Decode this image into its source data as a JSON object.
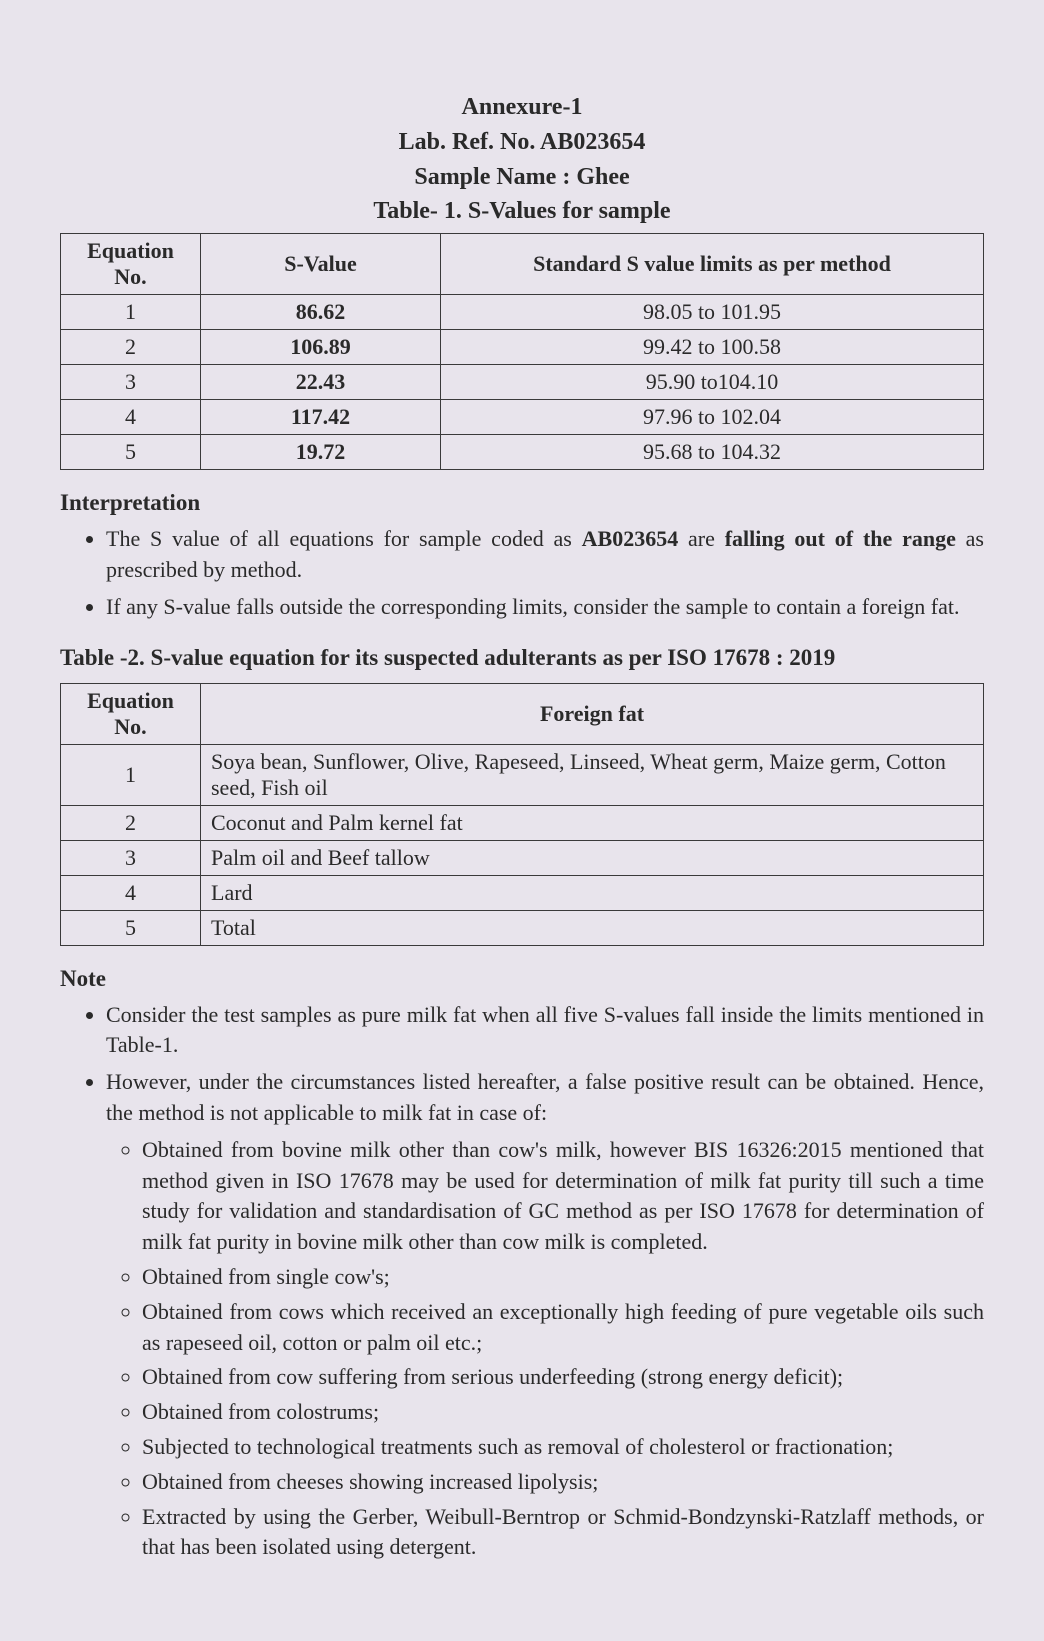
{
  "header": {
    "annexure": "Annexure-1",
    "labref": "Lab. Ref. No. AB023654",
    "sample": "Sample Name : Ghee",
    "table1_title": "Table- 1. S-Values for sample"
  },
  "table1": {
    "headers": {
      "eq": "Equation No.",
      "sval": "S-Value",
      "limits": "Standard S value limits as per method"
    },
    "rows": [
      {
        "eq": "1",
        "sval": "86.62",
        "limits": "98.05 to 101.95"
      },
      {
        "eq": "2",
        "sval": "106.89",
        "limits": "99.42 to 100.58"
      },
      {
        "eq": "3",
        "sval": "22.43",
        "limits": "95.90 to104.10"
      },
      {
        "eq": "4",
        "sval": "117.42",
        "limits": "97.96 to 102.04"
      },
      {
        "eq": "5",
        "sval": "19.72",
        "limits": "95.68 to 104.32"
      }
    ]
  },
  "interpretation": {
    "heading": "Interpretation",
    "b1_a": "The S value of all equations for sample coded as ",
    "b1_code": "AB023654",
    "b1_b": " are ",
    "b1_bold": "falling out of the range",
    "b1_c": " as prescribed by method.",
    "b2": "If any S-value falls outside the corresponding limits, consider the sample to contain a foreign fat."
  },
  "table2_title": "Table -2. S-value equation for its suspected adulterants as per ISO 17678 : 2019",
  "table2": {
    "headers": {
      "eq": "Equation No.",
      "ff": "Foreign fat"
    },
    "rows": [
      {
        "eq": "1",
        "ff": "Soya bean, Sunflower, Olive, Rapeseed, Linseed, Wheat germ, Maize germ, Cotton seed, Fish oil"
      },
      {
        "eq": "2",
        "ff": "Coconut and Palm kernel fat"
      },
      {
        "eq": "3",
        "ff": "Palm oil and Beef tallow"
      },
      {
        "eq": "4",
        "ff": "Lard"
      },
      {
        "eq": "5",
        "ff": "Total"
      }
    ]
  },
  "note": {
    "heading": "Note",
    "b1": "Consider the test samples as pure milk fat when all five S-values fall inside the limits mentioned in Table-1.",
    "b2": "However, under the circumstances listed hereafter, a false positive result can be obtained. Hence, the method is not applicable to milk fat in case of:",
    "sub": [
      "Obtained from bovine milk other than cow's milk, however BIS 16326:2015 mentioned that method given in ISO 17678 may be used for determination of milk fat purity till such a time study for validation and standardisation of GC method as per ISO 17678 for determination of milk fat purity in bovine milk other than cow milk is completed.",
      "Obtained from single cow's;",
      "Obtained from cows which received an exceptionally high feeding of pure vegetable oils such as rapeseed oil, cotton or palm oil etc.;",
      "Obtained from cow suffering from serious underfeeding (strong energy deficit);",
      "Obtained from colostrums;",
      "Subjected to technological treatments such as removal of cholesterol or fractionation;",
      "Obtained from cheeses showing increased lipolysis;",
      "Extracted by using the Gerber, Weibull-Berntrop or Schmid-Bondzynski-Ratzlaff methods, or that has been isolated using detergent."
    ]
  },
  "style": {
    "page_bg": "#e8e4ec",
    "text_color": "#2a2a2a",
    "border_color": "#3a3a3a",
    "base_fontsize": 22,
    "heading_fontsize": 23,
    "header_fontsize": 24,
    "col_widths": {
      "eq": 140,
      "sval": 240
    }
  }
}
